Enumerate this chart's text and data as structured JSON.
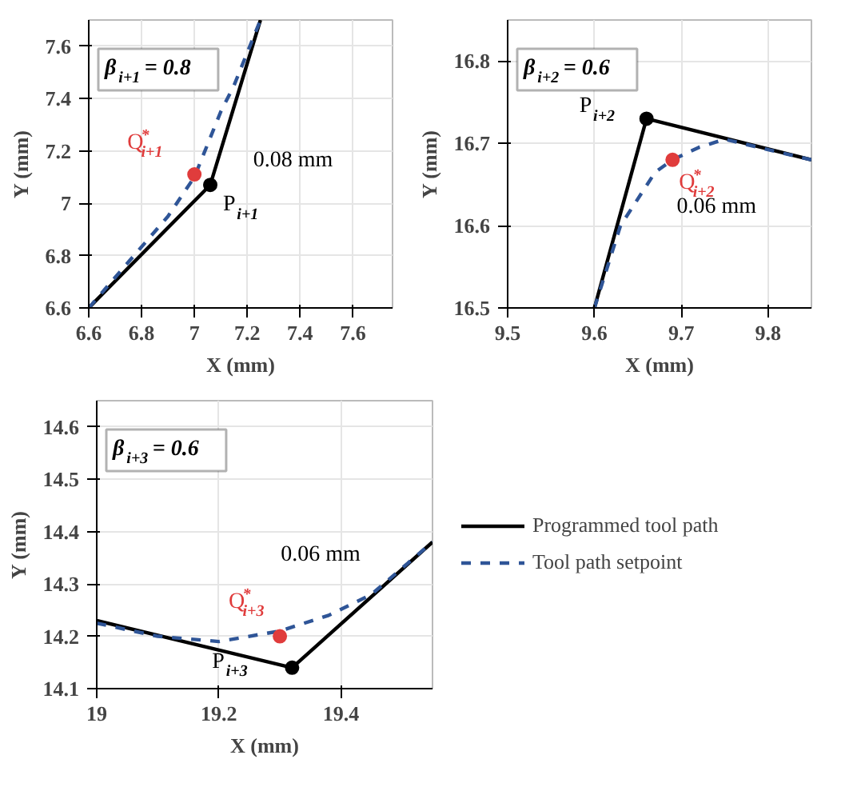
{
  "chart_data": [
    {
      "type": "line",
      "xlabel": "X (mm)",
      "ylabel": "Y (mm)",
      "xlim": [
        6.6,
        7.75
      ],
      "ylim": [
        6.6,
        7.7
      ],
      "xticks": [
        6.6,
        6.8,
        7,
        7.2,
        7.4,
        7.6
      ],
      "yticks": [
        6.6,
        6.8,
        7,
        7.2,
        7.4,
        7.6
      ],
      "grid": true,
      "legend": false,
      "series": [
        {
          "color": "#000000",
          "line_style": "solid",
          "x": [
            6.6,
            7.06,
            7.25
          ],
          "values": [
            6.6,
            7.07,
            7.7
          ]
        },
        {
          "color": "#2f5597",
          "line_style": "dashed",
          "x": [
            6.6,
            6.9,
            7.0,
            7.1,
            7.15,
            7.25
          ],
          "values": [
            6.6,
            6.95,
            7.1,
            7.35,
            7.45,
            7.7
          ]
        },
        {
          "type": "scatter",
          "color": "#000000",
          "marker": "circle",
          "x": [
            7.06
          ],
          "values": [
            7.07
          ]
        },
        {
          "type": "scatter",
          "color": "#e03c3c",
          "marker": "circle",
          "x": [
            7.0
          ],
          "values": [
            7.11
          ]
        }
      ],
      "annotations": [
        "β$_{i+1}$ = 0.8",
        {
          "text": "Q$^{*}$$_{i+1}$",
          "x": 7.0,
          "y": 7.11
        },
        {
          "text": "P$_{i+1}$",
          "x": 7.06,
          "y": 7.07
        },
        {
          "text": "0.08 mm",
          "x": 7.15,
          "y": 7.25
        }
      ]
    },
    {
      "type": "line",
      "xlabel": "X (mm)",
      "ylabel": "Y (mm)",
      "xlim": [
        9.5,
        9.85
      ],
      "ylim": [
        16.5,
        16.85
      ],
      "xticks": [
        9.5,
        9.6,
        9.7,
        9.8
      ],
      "yticks": [
        16.5,
        16.6,
        16.7,
        16.8
      ],
      "grid": true,
      "legend": false,
      "series": [
        {
          "color": "#000000",
          "line_style": "solid",
          "x": [
            9.6,
            9.66,
            9.85
          ],
          "values": [
            16.5,
            16.73,
            16.68
          ]
        },
        {
          "color": "#2f5597",
          "line_style": "dashed",
          "x": [
            9.6,
            9.63,
            9.67,
            9.69,
            9.72,
            9.75,
            9.85
          ],
          "values": [
            16.5,
            16.6,
            16.665,
            16.68,
            16.695,
            16.705,
            16.68
          ]
        },
        {
          "type": "scatter",
          "color": "#000000",
          "marker": "circle",
          "x": [
            9.66
          ],
          "values": [
            16.73
          ]
        },
        {
          "type": "scatter",
          "color": "#e03c3c",
          "marker": "circle",
          "x": [
            9.69
          ],
          "values": [
            16.68
          ]
        }
      ],
      "annotations": [
        "β$_{i+2}$ = 0.6",
        {
          "text": "P$_{i+2}$",
          "x": 9.66,
          "y": 16.73
        },
        {
          "text": "Q$^{*}$$_{i+2}$",
          "x": 9.69,
          "y": 16.68
        },
        {
          "text": "0.06 mm",
          "x": 9.75,
          "y": 16.705
        }
      ]
    },
    {
      "type": "line",
      "xlabel": "X (mm)",
      "ylabel": "Y (mm)",
      "xlim": [
        19,
        19.55
      ],
      "ylim": [
        14.1,
        14.65
      ],
      "xticks": [
        19,
        19.2,
        19.4
      ],
      "yticks": [
        14.1,
        14.2,
        14.3,
        14.4,
        14.5,
        14.6
      ],
      "grid": true,
      "legend": "right",
      "series": [
        {
          "name": "Programmed tool path",
          "color": "#000000",
          "line_style": "solid",
          "x": [
            19,
            19.32,
            19.55
          ],
          "values": [
            14.23,
            14.14,
            14.38
          ]
        },
        {
          "name": "Tool path setpoint",
          "color": "#2f5597",
          "line_style": "dashed",
          "x": [
            19,
            19.1,
            19.2,
            19.3,
            19.38,
            19.45,
            19.55
          ],
          "values": [
            14.225,
            14.2,
            14.19,
            14.21,
            14.24,
            14.28,
            14.38
          ]
        },
        {
          "type": "scatter",
          "color": "#000000",
          "marker": "circle",
          "x": [
            19.32
          ],
          "values": [
            14.14
          ]
        },
        {
          "type": "scatter",
          "color": "#e03c3c",
          "marker": "circle",
          "x": [
            19.3
          ],
          "values": [
            14.2
          ]
        }
      ],
      "annotations": [
        "β$_{i+3}$ = 0.6",
        {
          "text": "Q$^{*}$$_{i+3}$",
          "x": 19.3,
          "y": 14.2
        },
        {
          "text": "P$_{i+3}$",
          "x": 19.32,
          "y": 14.14
        },
        {
          "text": "0.06 mm",
          "x": 19.38,
          "y": 14.24
        }
      ]
    }
  ]
}
